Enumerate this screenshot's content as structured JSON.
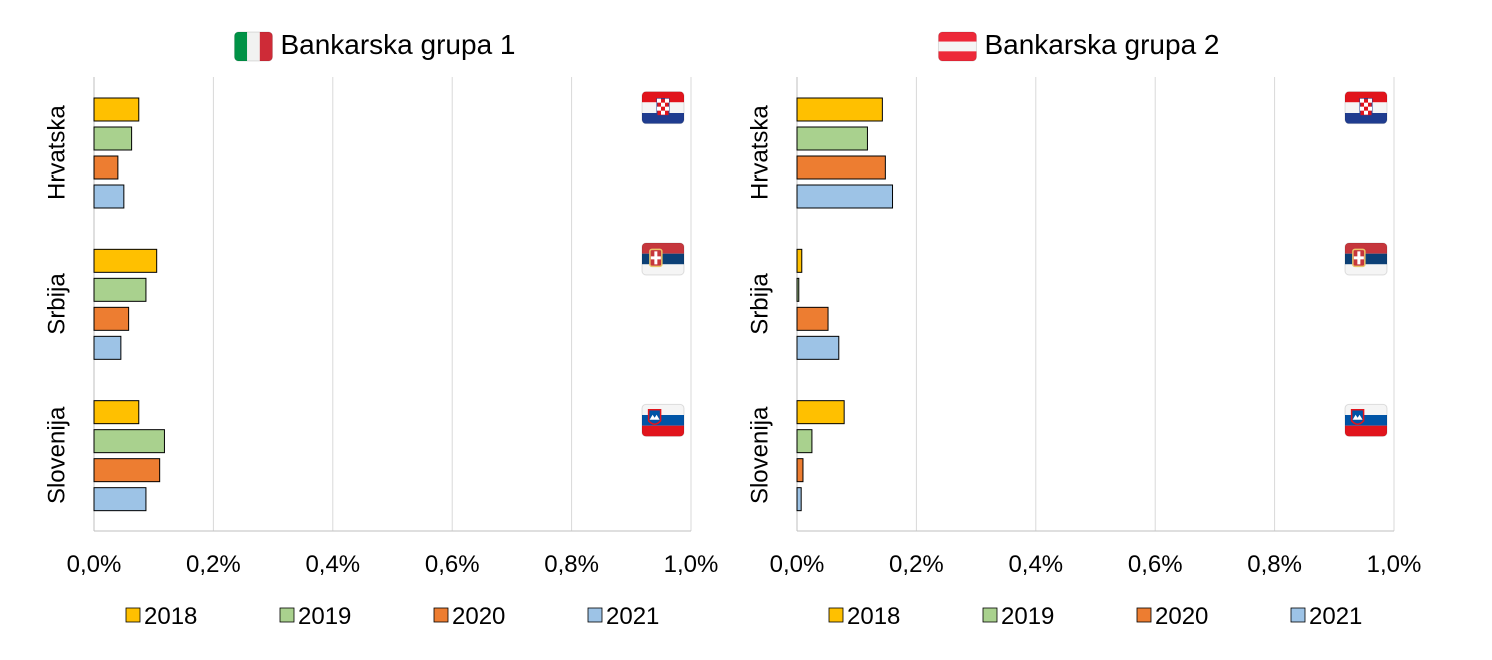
{
  "chart_data": [
    {
      "type": "bar",
      "orientation": "horizontal",
      "title": "Bankarska grupa 1",
      "title_flag": "italy-flag",
      "categories": [
        "Hrvatska",
        "Srbija",
        "Slovenija"
      ],
      "category_flags": [
        "croatia-flag",
        "serbia-flag",
        "slovenia-flag"
      ],
      "xlim": [
        0,
        1.0
      ],
      "xticks": [
        "0,0%",
        "0,2%",
        "0,4%",
        "0,6%",
        "0,8%",
        "1,0%"
      ],
      "xtick_values": [
        0,
        0.2,
        0.4,
        0.6,
        0.8,
        1.0
      ],
      "grid": true,
      "legend_position": "bottom",
      "series": [
        {
          "name": "2018",
          "values": [
            0.075,
            0.105,
            0.075
          ]
        },
        {
          "name": "2019",
          "values": [
            0.063,
            0.087,
            0.118
          ]
        },
        {
          "name": "2020",
          "values": [
            0.04,
            0.058,
            0.11
          ]
        },
        {
          "name": "2021",
          "values": [
            0.05,
            0.045,
            0.087
          ]
        }
      ]
    },
    {
      "type": "bar",
      "orientation": "horizontal",
      "title": "Bankarska grupa 2",
      "title_flag": "austria-flag",
      "categories": [
        "Hrvatska",
        "Srbija",
        "Slovenija"
      ],
      "category_flags": [
        "croatia-flag",
        "serbia-flag",
        "slovenia-flag"
      ],
      "xlim": [
        0,
        1.0
      ],
      "xticks": [
        "0,0%",
        "0,2%",
        "0,4%",
        "0,6%",
        "0,8%",
        "1,0%"
      ],
      "xtick_values": [
        0,
        0.2,
        0.4,
        0.6,
        0.8,
        1.0
      ],
      "grid": true,
      "legend_position": "bottom",
      "series": [
        {
          "name": "2018",
          "values": [
            0.143,
            0.008,
            0.079
          ]
        },
        {
          "name": "2019",
          "values": [
            0.118,
            0.003,
            0.025
          ]
        },
        {
          "name": "2020",
          "values": [
            0.148,
            0.052,
            0.01
          ]
        },
        {
          "name": "2021",
          "values": [
            0.16,
            0.07,
            0.007
          ]
        }
      ]
    }
  ],
  "colors": {
    "2018": "#FFC000",
    "2019": "#A9D18E",
    "2020": "#ED7D31",
    "2021": "#9DC3E6",
    "grid": "#D9D9D9",
    "axis": "#BFBFBF"
  }
}
